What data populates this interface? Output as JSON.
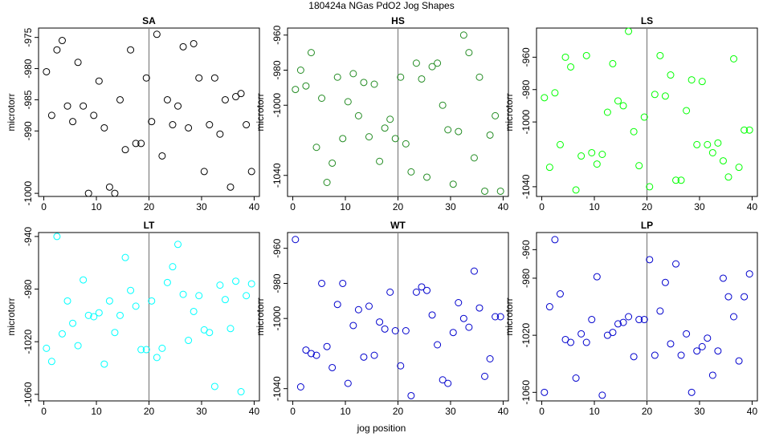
{
  "main_title": "180424a   NGas PdO2 Jog Shapes",
  "xlabel": "jog position",
  "chart_data": [
    {
      "type": "scatter",
      "title": "SA",
      "ylabel": "microtorr",
      "color": "#000000",
      "xlim": [
        -1,
        41
      ],
      "ylim": [
        -1000.5,
        -973.5
      ],
      "xticks": [
        0,
        10,
        20,
        30,
        40
      ],
      "yticks": [
        -975,
        -980,
        -985,
        -990,
        -1000
      ],
      "vline": 20,
      "x": [
        0.5,
        1.5,
        2.5,
        3.5,
        4.5,
        5.5,
        6.5,
        7.5,
        8.5,
        9.5,
        10.5,
        11.5,
        12.5,
        13.5,
        14.5,
        15.5,
        16.5,
        17.5,
        18.5,
        19.5,
        20.5,
        21.5,
        22.5,
        23.5,
        24.5,
        25.5,
        26.5,
        27.5,
        28.5,
        29.5,
        30.5,
        31.5,
        32.5,
        33.5,
        34.5,
        35.5,
        36.5,
        37.5,
        38.5,
        39.5
      ],
      "y": [
        -980.5,
        -987.5,
        -977,
        -975.5,
        -986,
        -988.5,
        -979,
        -986,
        -1000,
        -987.5,
        -982,
        -989.5,
        -999,
        -1000,
        -985,
        -993,
        -977,
        -992,
        -992,
        -981.5,
        -988.5,
        -974.5,
        -994,
        -985,
        -989,
        -986,
        -976.5,
        -989.5,
        -976,
        -981.5,
        -996.5,
        -989,
        -981.5,
        -990.5,
        -985,
        -999,
        -984.5,
        -984,
        -989,
        -996.5
      ]
    },
    {
      "type": "scatter",
      "title": "HS",
      "ylabel": "microtorr",
      "color": "#228b22",
      "xlim": [
        -1,
        41
      ],
      "ylim": [
        -1052,
        -956
      ],
      "xticks": [
        0,
        10,
        20,
        30,
        40
      ],
      "yticks": [
        -960,
        -980,
        -1000,
        -1040
      ],
      "vline": 20,
      "x": [
        0.5,
        1.5,
        2.5,
        3.5,
        4.5,
        5.5,
        6.5,
        7.5,
        8.5,
        9.5,
        10.5,
        11.5,
        12.5,
        13.5,
        14.5,
        15.5,
        16.5,
        17.5,
        18.5,
        19.5,
        20.5,
        21.5,
        22.5,
        23.5,
        24.5,
        25.5,
        26.5,
        27.5,
        28.5,
        29.5,
        30.5,
        31.5,
        32.5,
        33.5,
        34.5,
        35.5,
        36.5,
        37.5,
        38.5,
        39.5
      ],
      "y": [
        -991,
        -980,
        -989,
        -970,
        -1024,
        -996,
        -1044,
        -1033,
        -984,
        -1019,
        -998,
        -982,
        -1006,
        -987,
        -1018,
        -988,
        -1032,
        -1013,
        -1008,
        -1019,
        -984,
        -1022,
        -1038,
        -976,
        -985,
        -1041,
        -978,
        -976,
        -1000,
        -1014,
        -1045,
        -1015,
        -960,
        -970,
        -1030,
        -984,
        -1049,
        -1017,
        -1006,
        -1049
      ]
    },
    {
      "type": "scatter",
      "title": "LS",
      "ylabel": "microtorr",
      "color": "#00ff00",
      "xlim": [
        -1,
        41
      ],
      "ylim": [
        -1046,
        -942
      ],
      "xticks": [
        0,
        10,
        20,
        30,
        40
      ],
      "yticks": [
        -960,
        -980,
        -1000,
        -1040
      ],
      "vline": 20,
      "x": [
        0.5,
        1.5,
        2.5,
        3.5,
        4.5,
        5.5,
        6.5,
        7.5,
        8.5,
        9.5,
        10.5,
        11.5,
        12.5,
        13.5,
        14.5,
        15.5,
        16.5,
        17.5,
        18.5,
        19.5,
        20.5,
        21.5,
        22.5,
        23.5,
        24.5,
        25.5,
        26.5,
        27.5,
        28.5,
        29.5,
        30.5,
        31.5,
        32.5,
        33.5,
        34.5,
        35.5,
        36.5,
        37.5,
        38.5,
        39.5
      ],
      "y": [
        -985,
        -1028,
        -982,
        -1014,
        -960,
        -966,
        -1042,
        -1021,
        -959,
        -1019,
        -1026,
        -1020,
        -994,
        -964,
        -987,
        -990,
        -944,
        -1006,
        -1027,
        -997,
        -1040,
        -983,
        -959,
        -984,
        -971,
        -1036,
        -1036,
        -993,
        -974,
        -1014,
        -975,
        -1014,
        -1019,
        -1013,
        -1024,
        -1034,
        -961,
        -1028,
        -1005,
        -1005
      ]
    },
    {
      "type": "scatter",
      "title": "LT",
      "ylabel": "microtorr",
      "color": "#00ffff",
      "xlim": [
        -1,
        41
      ],
      "ylim": [
        -1065,
        -937
      ],
      "xticks": [
        0,
        10,
        20,
        30,
        40
      ],
      "yticks": [
        -940,
        -980,
        -1020,
        -1060
      ],
      "vline": 20,
      "x": [
        0.5,
        1.5,
        2.5,
        3.5,
        4.5,
        5.5,
        6.5,
        7.5,
        8.5,
        9.5,
        10.5,
        11.5,
        12.5,
        13.5,
        14.5,
        15.5,
        16.5,
        17.5,
        18.5,
        19.5,
        20.5,
        21.5,
        22.5,
        23.5,
        24.5,
        25.5,
        26.5,
        27.5,
        28.5,
        29.5,
        30.5,
        31.5,
        32.5,
        33.5,
        34.5,
        35.5,
        36.5,
        37.5,
        38.5,
        39.5
      ],
      "y": [
        -1025,
        -1035,
        -940,
        -1014,
        -989,
        -1006,
        -1023,
        -973,
        -1000,
        -1001,
        -998,
        -1037,
        -989,
        -1013,
        -1000,
        -956,
        -981,
        -993,
        -1026,
        -1026,
        -989,
        -1032,
        -1025,
        -975,
        -963,
        -946,
        -984,
        -1019,
        -997,
        -985,
        -1011,
        -1013,
        -1054,
        -977,
        -988,
        -1010,
        -974,
        -1058,
        -985,
        -976
      ]
    },
    {
      "type": "scatter",
      "title": "WT",
      "ylabel": "microtorr",
      "color": "#0000cd",
      "xlim": [
        -1,
        41
      ],
      "ylim": [
        -1047,
        -951
      ],
      "xticks": [
        0,
        10,
        20,
        30,
        40
      ],
      "yticks": [
        -960,
        -980,
        -1000,
        -1040
      ],
      "vline": 20,
      "x": [
        0.5,
        1.5,
        2.5,
        3.5,
        4.5,
        5.5,
        6.5,
        7.5,
        8.5,
        9.5,
        10.5,
        11.5,
        12.5,
        13.5,
        14.5,
        15.5,
        16.5,
        17.5,
        18.5,
        19.5,
        20.5,
        21.5,
        22.5,
        23.5,
        24.5,
        25.5,
        26.5,
        27.5,
        28.5,
        29.5,
        30.5,
        31.5,
        32.5,
        33.5,
        34.5,
        35.5,
        36.5,
        37.5,
        38.5,
        39.5
      ],
      "y": [
        -955,
        -1039,
        -1018,
        -1020,
        -1021,
        -980,
        -1016,
        -1028,
        -992,
        -980,
        -1037,
        -1004,
        -995,
        -1022,
        -993,
        -1021,
        -1002,
        -1006,
        -985,
        -1007,
        -1027,
        -1007,
        -1044,
        -985,
        -982,
        -984,
        -998,
        -1015,
        -1035,
        -1037,
        -1008,
        -991,
        -1000,
        -1005,
        -973,
        -994,
        -1033,
        -1023,
        -999,
        -999
      ]
    },
    {
      "type": "scatter",
      "title": "LP",
      "ylabel": "microtorr",
      "color": "#0000cd",
      "xlim": [
        -1,
        41
      ],
      "ylim": [
        -1066,
        -948
      ],
      "xticks": [
        0,
        10,
        20,
        30,
        40
      ],
      "yticks": [
        -960,
        -980,
        -1020,
        -1060
      ],
      "vline": 20,
      "x": [
        0.5,
        1.5,
        2.5,
        3.5,
        4.5,
        5.5,
        6.5,
        7.5,
        8.5,
        9.5,
        10.5,
        11.5,
        12.5,
        13.5,
        14.5,
        15.5,
        16.5,
        17.5,
        18.5,
        19.5,
        20.5,
        21.5,
        22.5,
        23.5,
        24.5,
        25.5,
        26.5,
        27.5,
        28.5,
        29.5,
        30.5,
        31.5,
        32.5,
        33.5,
        34.5,
        35.5,
        36.5,
        37.5,
        38.5,
        39.5
      ],
      "y": [
        -1060,
        -1000,
        -953,
        -991,
        -1023,
        -1025,
        -1050,
        -1019,
        -1025,
        -1009,
        -979,
        -1062,
        -1020,
        -1018,
        -1012,
        -1011,
        -1007,
        -1035,
        -1009,
        -1009,
        -967,
        -1034,
        -1003,
        -983,
        -1026,
        -970,
        -1034,
        -1019,
        -1060,
        -1031,
        -1028,
        -1022,
        -1048,
        -1031,
        -980,
        -993,
        -1007,
        -1038,
        -993,
        -977
      ]
    }
  ]
}
